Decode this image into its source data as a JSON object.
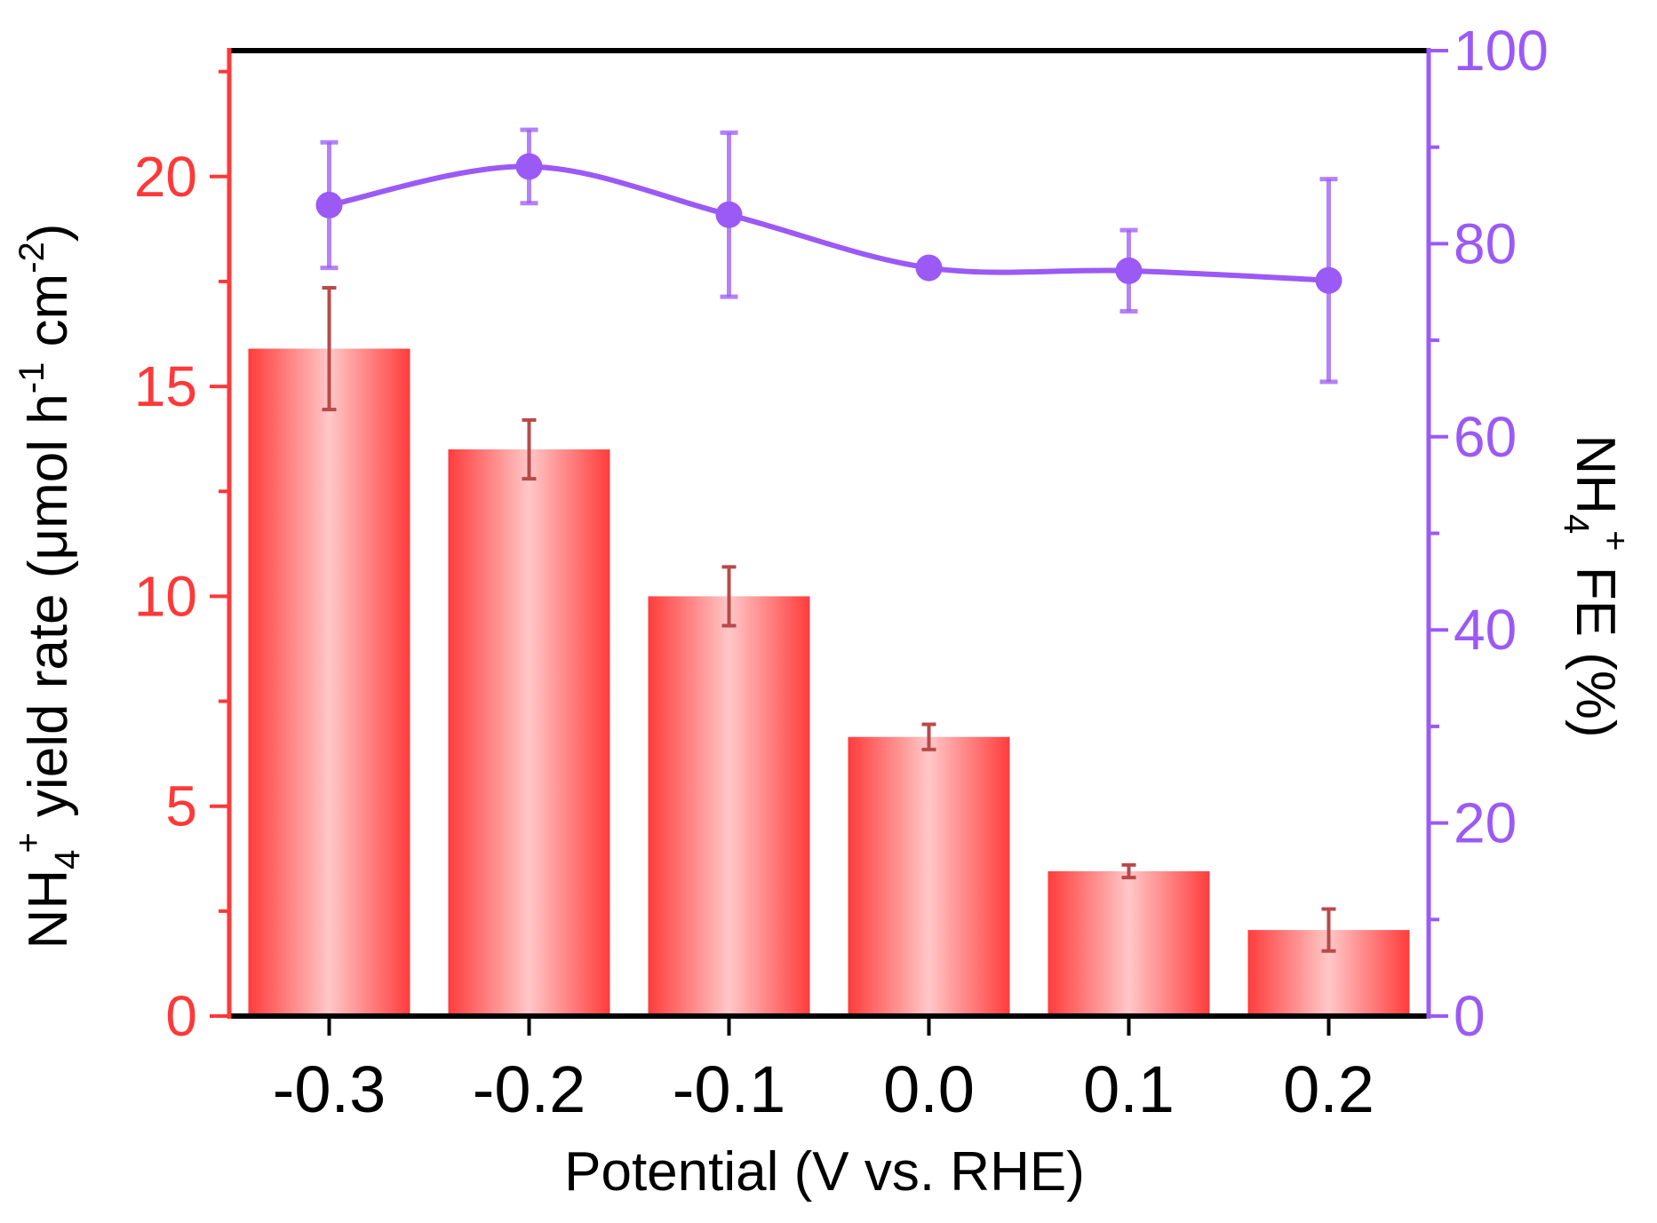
{
  "chart_data": {
    "type": "bar",
    "categories": [
      "-0.3",
      "-0.2",
      "-0.1",
      "0.0",
      "0.1",
      "0.2"
    ],
    "xlabel": "Potential (V vs. RHE)",
    "series": [
      {
        "name": "NH4+ yield rate",
        "axis": "left",
        "kind": "bar",
        "values": [
          15.9,
          13.5,
          10.0,
          6.65,
          3.45,
          2.05
        ],
        "errors": [
          1.45,
          0.7,
          0.7,
          0.3,
          0.15,
          0.5
        ]
      },
      {
        "name": "NH4+ FE",
        "axis": "right",
        "kind": "line",
        "values": [
          84.0,
          88.0,
          83.0,
          77.5,
          77.2,
          76.2
        ],
        "errors": [
          6.5,
          3.8,
          8.5,
          0.8,
          4.2,
          10.5
        ]
      }
    ],
    "yleft": {
      "label_main": "NH",
      "label_sub": "4",
      "label_sup": "+",
      "label_rest": " yield rate (μmol h",
      "label_sup2": "-1",
      "label_rest2": " cm",
      "label_sup3": "-2",
      "label_end": ")",
      "ylim": [
        0,
        23
      ],
      "ticks": [
        "0",
        "5",
        "10",
        "15",
        "20"
      ],
      "tick_values": [
        0,
        5,
        10,
        15,
        20
      ]
    },
    "yright": {
      "label_main": "NH",
      "label_sub": "4",
      "label_sup": "+",
      "label_rest": " FE (%)",
      "ylim": [
        0,
        100
      ],
      "ticks": [
        "0",
        "20",
        "40",
        "60",
        "80",
        "100"
      ],
      "tick_values": [
        0,
        20,
        40,
        60,
        80,
        100
      ]
    },
    "colors": {
      "left": "#ff3838",
      "right": "#9b59f5",
      "bar_edge": "#ff3c3c",
      "bar_center": "#ffc7c7",
      "bar_error": "#b84a4a",
      "axis": "#000000"
    }
  }
}
